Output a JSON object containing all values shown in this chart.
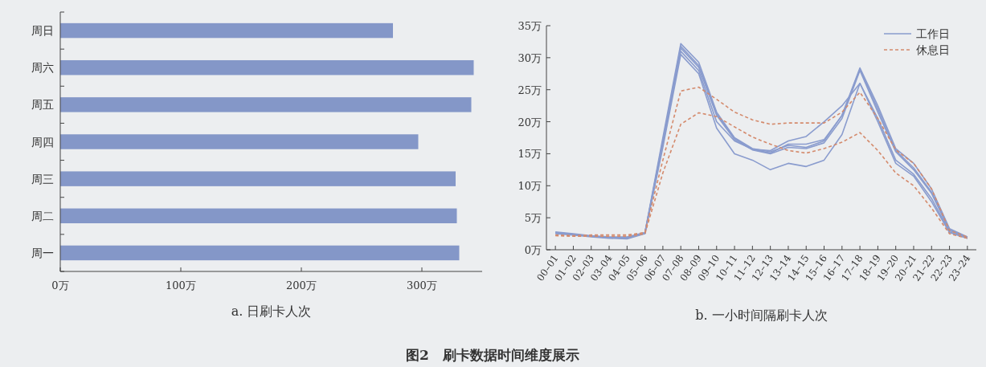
{
  "chart_data": [
    {
      "type": "bar",
      "orientation": "horizontal",
      "title": "a. 日刷卡人次",
      "categories": [
        "周日",
        "周六",
        "周五",
        "周四",
        "周三",
        "周二",
        "周一"
      ],
      "values": [
        276,
        343,
        341,
        297,
        328,
        329,
        331
      ],
      "color": "#8497c8",
      "xlim": [
        0,
        350
      ],
      "xticks": [
        {
          "value": 0,
          "label": "0万"
        },
        {
          "value": 100,
          "label": "100万"
        },
        {
          "value": 200,
          "label": "200万"
        },
        {
          "value": 300,
          "label": "300万"
        }
      ]
    },
    {
      "type": "line",
      "title": "b. 一小时间隔刷卡人次",
      "annotations": [
        "图2　刷卡数据时间维度展示"
      ],
      "categories": [
        "00–01",
        "01–02",
        "02–03",
        "03–04",
        "04–05",
        "05–06",
        "06–07",
        "07–08",
        "08–09",
        "09–10",
        "10–11",
        "11–12",
        "12–13",
        "13–14",
        "14–15",
        "15–16",
        "16–17",
        "17–18",
        "18–19",
        "19–20",
        "20–21",
        "21–22",
        "22–23",
        "23–24"
      ],
      "ylim": [
        0,
        35
      ],
      "yticks": [
        {
          "value": 0,
          "label": "0万"
        },
        {
          "value": 5,
          "label": "5万"
        },
        {
          "value": 10,
          "label": "10万"
        },
        {
          "value": 15,
          "label": "15万"
        },
        {
          "value": 20,
          "label": "20万"
        },
        {
          "value": 25,
          "label": "25万"
        },
        {
          "value": 30,
          "label": "30万"
        },
        {
          "value": 35,
          "label": "35万"
        }
      ],
      "legend": "top right",
      "series": [
        {
          "name": "工作日",
          "color": "#8a9cce",
          "line_style": "solid",
          "values": [
            2.8,
            2.5,
            2.2,
            2.0,
            2.0,
            2.7,
            17.5,
            32.2,
            29.3,
            21.5,
            17.5,
            15.8,
            15.3,
            16.3,
            16.0,
            17.0,
            21.0,
            28.4,
            22.5,
            15.8,
            13.5,
            9.5,
            3.3,
            2.0
          ]
        },
        {
          "color": "#8a9cce",
          "line_style": "solid",
          "values": [
            2.6,
            2.4,
            2.1,
            1.9,
            1.9,
            2.6,
            17,
            31.5,
            28.5,
            21,
            17.2,
            15.6,
            15.0,
            16.0,
            15.8,
            16.7,
            20.5,
            28.0,
            21.5,
            15.3,
            12.5,
            8.8,
            3.0,
            1.9
          ]
        },
        {
          "color": "#8a9cce",
          "line_style": "solid",
          "values": [
            2.7,
            2.4,
            2.1,
            1.9,
            1.8,
            2.6,
            16.5,
            31,
            28,
            20,
            17,
            15.7,
            15.5,
            17,
            17.7,
            20,
            22.5,
            26,
            20.5,
            14,
            11.8,
            8,
            2.8,
            1.8
          ]
        },
        {
          "color": "#8a9cce",
          "line_style": "solid",
          "values": [
            2.5,
            2.3,
            2.0,
            1.8,
            1.7,
            2.5,
            16,
            30.5,
            27.5,
            19,
            15,
            14,
            12.5,
            13.5,
            13,
            14,
            18,
            26,
            20,
            13.5,
            11.5,
            7.5,
            2.7,
            1.8
          ]
        },
        {
          "color": "#8a9cce",
          "line_style": "solid",
          "values": [
            2.7,
            2.4,
            2.1,
            1.9,
            1.8,
            2.6,
            17,
            31.8,
            28.8,
            21.2,
            17.4,
            15.7,
            15.1,
            16.5,
            16.5,
            17.2,
            21,
            28.2,
            22,
            15.5,
            12.8,
            9,
            3.1,
            1.9
          ]
        },
        {
          "name": "休息日",
          "color": "#d48a6c",
          "line_style": "dashed",
          "values": [
            2.3,
            2.2,
            2.3,
            2.3,
            2.3,
            2.7,
            14,
            24.8,
            25.4,
            23.5,
            21.5,
            20.3,
            19.6,
            19.8,
            19.8,
            19.8,
            21.5,
            24.6,
            20.5,
            15.6,
            13.5,
            9.5,
            3.0,
            2.0
          ]
        },
        {
          "color": "#d48a6c",
          "line_style": "dashed",
          "values": [
            2.2,
            2.1,
            2.1,
            2.1,
            2.1,
            2.5,
            12,
            19.6,
            21.4,
            20.8,
            19.2,
            17.6,
            16.5,
            15.5,
            15.1,
            15.8,
            16.8,
            18.3,
            15.5,
            12,
            10,
            6.5,
            2.5,
            1.8
          ]
        }
      ]
    }
  ]
}
